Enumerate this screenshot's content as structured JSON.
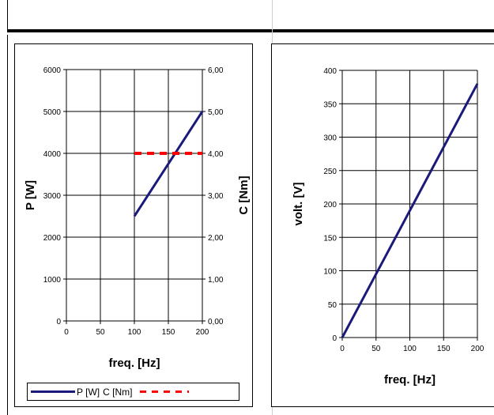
{
  "chart_data": [
    {
      "type": "line",
      "xlabel": "freq. [Hz]",
      "ylabel": "P  [W]",
      "y2label": "C [Nm]",
      "xticks": [
        "0",
        "50",
        "100",
        "150",
        "200"
      ],
      "yticks": [
        "0",
        "1000",
        "2000",
        "3000",
        "4000",
        "5000",
        "6000"
      ],
      "y2ticks": [
        "0,00",
        "1,00",
        "2,00",
        "3,00",
        "4,00",
        "5,00",
        "6,00"
      ],
      "xlim": [
        0,
        200
      ],
      "ylim": [
        0,
        6000
      ],
      "y2lim": [
        0,
        6
      ],
      "grid": true,
      "legend_position": "bottom",
      "series": [
        {
          "name": "P [W]",
          "axis": "y",
          "color": "#1a1a7a",
          "style": "solid",
          "x": [
            100,
            200
          ],
          "values": [
            2500,
            5000
          ]
        },
        {
          "name": "C [Nm]",
          "axis": "y2",
          "color": "#ff0000",
          "style": "dashed",
          "x": [
            100,
            200
          ],
          "values": [
            4,
            4
          ]
        }
      ]
    },
    {
      "type": "line",
      "xlabel": "freq. [Hz]",
      "ylabel": "volt. [V]",
      "xticks": [
        "0",
        "50",
        "100",
        "150",
        "200"
      ],
      "yticks": [
        "0",
        "50",
        "100",
        "150",
        "200",
        "250",
        "300",
        "350",
        "400"
      ],
      "xlim": [
        0,
        200
      ],
      "ylim": [
        0,
        400
      ],
      "grid": true,
      "series": [
        {
          "color": "#1a1a7a",
          "style": "solid",
          "x": [
            0,
            200
          ],
          "values": [
            0,
            380
          ]
        }
      ]
    }
  ]
}
